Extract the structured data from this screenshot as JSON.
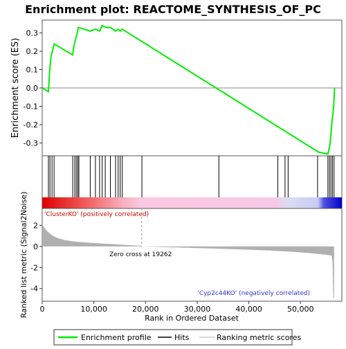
{
  "chart_data": {
    "type": "line",
    "title": "Enrichment plot: REACTOME_SYNTHESIS_OF_PC",
    "xlabel": "Rank in Ordered Dataset",
    "ylabel_top": "Enrichment score (ES)",
    "ylabel_bottom": "Ranked list metric (Signal2Noise)",
    "x_ticks": [
      "0",
      "10,000",
      "20,000",
      "30,000",
      "40,000",
      "50,000"
    ],
    "x_tick_values": [
      0,
      10000,
      20000,
      30000,
      40000,
      50000
    ],
    "es_y_ticks": [
      "0.3",
      "0.2",
      "0.1",
      "0.0",
      "-0.1",
      "-0.2",
      "-0.3"
    ],
    "es_y_tick_values": [
      0.3,
      0.2,
      0.1,
      0.0,
      -0.1,
      -0.2,
      -0.3
    ],
    "es_ylim": [
      -0.37,
      0.37
    ],
    "metric_y_ticks": [
      "2",
      "0",
      "-2",
      "-4"
    ],
    "metric_y_tick_values": [
      2,
      0,
      -2,
      -4
    ],
    "metric_ylim": [
      -5.2,
      3.6
    ],
    "xlim": [
      0,
      58000
    ],
    "grid": false,
    "legend_position": "bottom",
    "series": [
      {
        "name": "Enrichment profile",
        "color": "#00ee00",
        "x": [
          0,
          1200,
          1400,
          1700,
          2300,
          5900,
          6100,
          6400,
          6700,
          7000,
          9300,
          10300,
          11100,
          11600,
          12300,
          13200,
          14200,
          14700,
          15100,
          15500,
          53500,
          55300,
          55700,
          55900,
          56100,
          56400,
          56600
        ],
        "y": [
          0.0,
          -0.02,
          0.08,
          0.17,
          0.24,
          0.18,
          0.22,
          0.26,
          0.29,
          0.33,
          0.31,
          0.32,
          0.31,
          0.34,
          0.33,
          0.33,
          0.31,
          0.32,
          0.31,
          0.32,
          -0.35,
          -0.36,
          -0.31,
          -0.25,
          -0.18,
          -0.11,
          0.0
        ]
      }
    ],
    "hits": [
      1200,
      1500,
      1900,
      2300,
      5900,
      6300,
      6600,
      6900,
      7100,
      9300,
      10300,
      11100,
      11600,
      12200,
      13200,
      14200,
      14700,
      15100,
      15500,
      19300,
      34200,
      45600,
      47000,
      47600,
      53300,
      55300,
      55600,
      55900,
      56200,
      56500
    ],
    "zero_cross_label": "Zero cross at 19262",
    "zero_cross_value": 19262,
    "positive_label": "'ClusterKO' (positively correlated)",
    "negative_label": "'Cyp2c44KO' (negatively correlated)",
    "legend": {
      "enrichment": "Enrichment profile",
      "hits": "Hits",
      "ranking": "Ranking metric scores"
    },
    "colors": {
      "es_line": "#00ee00",
      "hits": "#000000",
      "positive": "#ff0000",
      "negative": "#0000ff",
      "metric_fill": "#b0b0b0",
      "pos_label": "#cc0000",
      "neg_label": "#3333cc"
    }
  }
}
